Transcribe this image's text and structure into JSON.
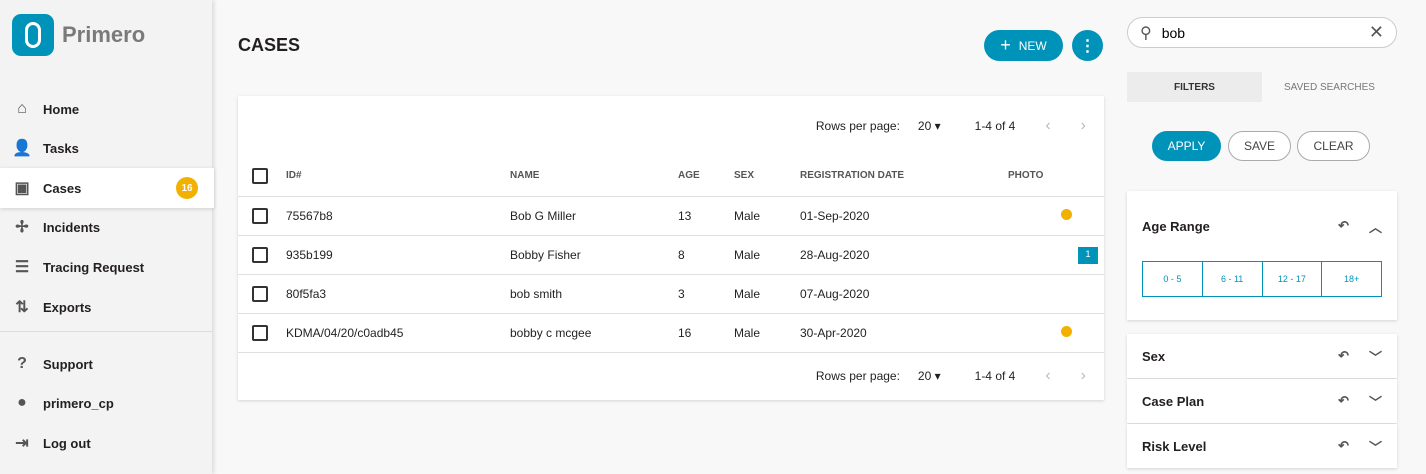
{
  "app": {
    "name": "Primero"
  },
  "sidebar": {
    "items": [
      {
        "label": "Home",
        "icon": "home-icon"
      },
      {
        "label": "Tasks",
        "icon": "tasks-icon"
      },
      {
        "label": "Cases",
        "icon": "cases-icon",
        "badge": "16",
        "active": true
      },
      {
        "label": "Incidents",
        "icon": "incidents-icon"
      },
      {
        "label": "Tracing Request",
        "icon": "tracing-request-icon"
      },
      {
        "label": "Exports",
        "icon": "exports-icon"
      },
      {
        "label": "Support",
        "icon": "help-icon"
      },
      {
        "label": "primero_cp",
        "icon": "account-icon"
      },
      {
        "label": "Log out",
        "icon": "logout-icon"
      }
    ]
  },
  "header": {
    "title": "CASES",
    "new_label": "NEW"
  },
  "table": {
    "rows_per_page_label": "Rows per page:",
    "rows_per_page": "20",
    "range": "1-4 of 4",
    "columns": [
      "ID#",
      "NAME",
      "AGE",
      "SEX",
      "REGISTRATION DATE",
      "PHOTO"
    ],
    "rows": [
      {
        "id": "75567b8",
        "name": "Bob G Miller",
        "age": "13",
        "sex": "Male",
        "date": "01-Sep-2020",
        "flag": "dot"
      },
      {
        "id": "935b199",
        "name": "Bobby Fisher",
        "age": "8",
        "sex": "Male",
        "date": "28-Aug-2020",
        "flag": "1"
      },
      {
        "id": "80f5fa3",
        "name": "bob smith",
        "age": "3",
        "sex": "Male",
        "date": "07-Aug-2020",
        "flag": ""
      },
      {
        "id": "KDMA/04/20/c0adb45",
        "name": "bobby c mcgee",
        "age": "16",
        "sex": "Male",
        "date": "30-Apr-2020",
        "flag": "dot"
      }
    ]
  },
  "search": {
    "value": "bob"
  },
  "filters": {
    "tabs": [
      "FILTERS",
      "SAVED SEARCHES"
    ],
    "apply": "APPLY",
    "save": "SAVE",
    "clear": "CLEAR",
    "age_range": {
      "title": "Age Range",
      "options": [
        "0 - 5",
        "6 - 11",
        "12 - 17",
        "18+"
      ]
    },
    "sections": [
      "Sex",
      "Case Plan",
      "Risk Level"
    ]
  },
  "colors": {
    "primary": "#0093ba",
    "badge": "#f2b100"
  }
}
